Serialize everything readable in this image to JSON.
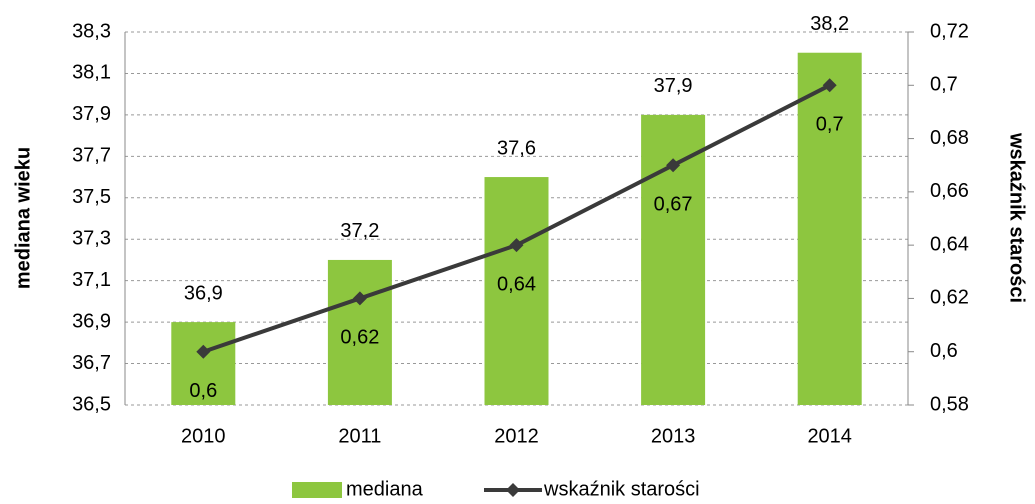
{
  "chart_data": {
    "type": "bar",
    "categories": [
      "2010",
      "2011",
      "2012",
      "2013",
      "2014"
    ],
    "series": [
      {
        "name": "mediana",
        "type": "bar",
        "color": "#8dc63f",
        "axis": "y",
        "values": [
          36.9,
          37.2,
          37.6,
          37.9,
          38.2
        ],
        "value_labels": [
          "36,9",
          "37,2",
          "37,6",
          "37,9",
          "38,2"
        ]
      },
      {
        "name": "wskaźnik starości",
        "type": "line",
        "color": "#3a3a3a",
        "axis": "y2",
        "values": [
          0.6,
          0.62,
          0.64,
          0.67,
          0.7
        ],
        "value_labels": [
          "0,6",
          "0,62",
          "0,64",
          "0,67",
          "0,7"
        ]
      }
    ],
    "ylabel": "mediana wieku",
    "y2label": "wskaźnik starości",
    "ylim": [
      36.5,
      38.3
    ],
    "yticks": [
      {
        "value": 36.5,
        "label": "36,5"
      },
      {
        "value": 36.7,
        "label": "36,7"
      },
      {
        "value": 36.9,
        "label": "36,9"
      },
      {
        "value": 37.1,
        "label": "37,1"
      },
      {
        "value": 37.3,
        "label": "37,3"
      },
      {
        "value": 37.5,
        "label": "37,5"
      },
      {
        "value": 37.7,
        "label": "37,7"
      },
      {
        "value": 37.9,
        "label": "37,9"
      },
      {
        "value": 38.1,
        "label": "38,1"
      },
      {
        "value": 38.3,
        "label": "38,3"
      }
    ],
    "y2lim": [
      0.58,
      0.72
    ],
    "y2ticks": [
      {
        "value": 0.58,
        "label": "0,58"
      },
      {
        "value": 0.6,
        "label": "0,6"
      },
      {
        "value": 0.62,
        "label": "0,62"
      },
      {
        "value": 0.64,
        "label": "0,64"
      },
      {
        "value": 0.66,
        "label": "0,66"
      },
      {
        "value": 0.68,
        "label": "0,68"
      },
      {
        "value": 0.7,
        "label": "0,7"
      },
      {
        "value": 0.72,
        "label": "0,72"
      }
    ],
    "grid": true,
    "legend": "bottom"
  }
}
